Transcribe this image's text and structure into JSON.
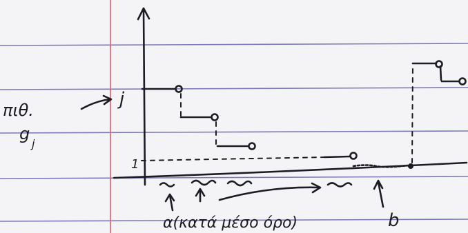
{
  "labels": {
    "probability": "πιθ.",
    "g": "g",
    "g_sub": "j",
    "j": "j",
    "one": "1",
    "alpha": "α(κατά μέσο όρο)",
    "b": "b"
  }
}
